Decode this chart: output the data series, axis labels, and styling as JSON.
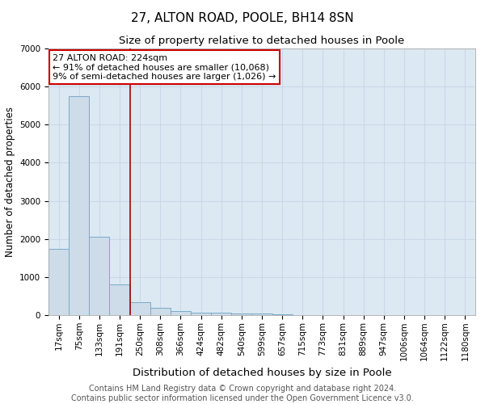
{
  "title": "27, ALTON ROAD, POOLE, BH14 8SN",
  "subtitle": "Size of property relative to detached houses in Poole",
  "xlabel": "Distribution of detached houses by size in Poole",
  "ylabel": "Number of detached properties",
  "categories": [
    "17sqm",
    "75sqm",
    "133sqm",
    "191sqm",
    "250sqm",
    "308sqm",
    "366sqm",
    "424sqm",
    "482sqm",
    "540sqm",
    "599sqm",
    "657sqm",
    "715sqm",
    "773sqm",
    "831sqm",
    "889sqm",
    "947sqm",
    "1006sqm",
    "1064sqm",
    "1122sqm",
    "1180sqm"
  ],
  "values": [
    1750,
    5750,
    2050,
    800,
    330,
    195,
    100,
    70,
    55,
    50,
    40,
    30,
    0,
    0,
    0,
    0,
    0,
    0,
    0,
    0,
    0
  ],
  "bar_color": "#cddce8",
  "bar_edge_color": "#7aaac8",
  "annotation_text": "27 ALTON ROAD: 224sqm\n← 91% of detached houses are smaller (10,068)\n9% of semi-detached houses are larger (1,026) →",
  "annotation_box_color": "#ffffff",
  "annotation_box_edge": "#cc0000",
  "vline_x": 3.5,
  "vline_color": "#aa0000",
  "ylim": [
    0,
    7000
  ],
  "grid_color": "#c5d5e5",
  "background_color": "#dce8f2",
  "footer_line1": "Contains HM Land Registry data © Crown copyright and database right 2024.",
  "footer_line2": "Contains public sector information licensed under the Open Government Licence v3.0.",
  "title_fontsize": 11,
  "subtitle_fontsize": 9.5,
  "ylabel_fontsize": 8.5,
  "xlabel_fontsize": 9.5,
  "tick_fontsize": 7.5,
  "annotation_fontsize": 8,
  "footer_fontsize": 7
}
